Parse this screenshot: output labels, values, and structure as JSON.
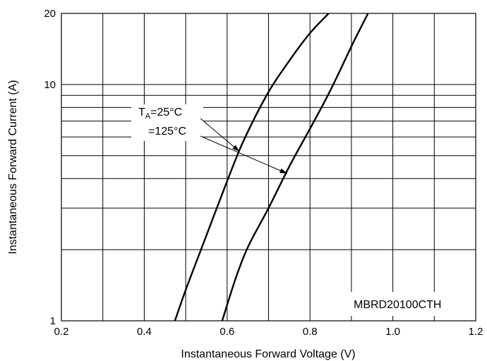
{
  "chart_data": {
    "type": "line",
    "title": "",
    "xlabel": "Instantaneous Forward Voltage (V)",
    "ylabel": "Instantaneous Forward Current (A)",
    "xlim": [
      0.2,
      1.2
    ],
    "ylim": [
      1,
      20
    ],
    "y_scale": "log",
    "grid": true,
    "x_ticks": [
      "0.2",
      "0.4",
      "0.6",
      "0.8",
      "1.0",
      "1.2"
    ],
    "y_ticks": [
      "1",
      "10",
      "20"
    ],
    "series": [
      {
        "name": "25°C",
        "points": [
          [
            0.474,
            1
          ],
          [
            0.5,
            1.35
          ],
          [
            0.55,
            2.3
          ],
          [
            0.6,
            3.9
          ],
          [
            0.64,
            5.8
          ],
          [
            0.7,
            9.3
          ],
          [
            0.75,
            12.6
          ],
          [
            0.8,
            16.5
          ],
          [
            0.845,
            20
          ]
        ]
      },
      {
        "name": "125°C",
        "points": [
          [
            0.588,
            1
          ],
          [
            0.62,
            1.5
          ],
          [
            0.65,
            2.05
          ],
          [
            0.7,
            3.0
          ],
          [
            0.75,
            4.5
          ],
          [
            0.8,
            6.5
          ],
          [
            0.85,
            9.5
          ],
          [
            0.9,
            14.5
          ],
          [
            0.94,
            20
          ]
        ]
      }
    ],
    "annotations": {
      "t_sym": "T",
      "t_sub": "A",
      "t25": "=25°C",
      "t125": "=125°C",
      "arrow_targets": [
        [
          0.63,
          5.2
        ],
        [
          0.745,
          4.2
        ]
      ]
    },
    "part_label": "MBRD20100CTH"
  }
}
